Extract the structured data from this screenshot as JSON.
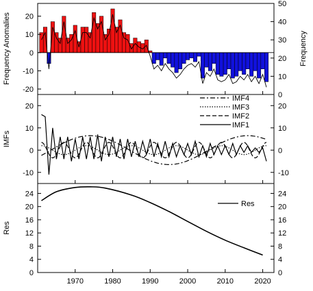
{
  "figure": {
    "x_ticks": [
      1970,
      1980,
      1990,
      2000,
      2010,
      2020
    ],
    "x_range": [
      1960,
      2023
    ]
  },
  "chart_data": [
    {
      "type": "bar",
      "ylabel_left": "Frequency Anomalies",
      "ylabel_right": "Frequency",
      "ylim_left": [
        -23,
        27
      ],
      "ylim_right": [
        0,
        50
      ],
      "left_ticks": [
        20,
        10,
        0,
        -10,
        -20
      ],
      "right_ticks": [
        50,
        40,
        30,
        20,
        10,
        0
      ],
      "colors": {
        "positive": "#ee1111",
        "negative": "#1111dd"
      },
      "years": [
        1961,
        1962,
        1963,
        1964,
        1965,
        1966,
        1967,
        1968,
        1969,
        1970,
        1971,
        1972,
        1973,
        1974,
        1975,
        1976,
        1977,
        1978,
        1979,
        1980,
        1981,
        1982,
        1983,
        1984,
        1985,
        1986,
        1987,
        1988,
        1989,
        1990,
        1991,
        1992,
        1993,
        1994,
        1995,
        1996,
        1997,
        1998,
        1999,
        2000,
        2001,
        2002,
        2003,
        2004,
        2005,
        2006,
        2007,
        2008,
        2009,
        2010,
        2011,
        2012,
        2013,
        2014,
        2015,
        2016,
        2017,
        2018,
        2019,
        2020,
        2021
      ],
      "anomaly": [
        11,
        14,
        -6,
        17,
        11,
        8,
        20,
        8,
        10,
        15,
        6,
        14,
        14,
        11,
        22,
        16,
        20,
        10,
        13,
        24,
        14,
        18,
        11,
        10,
        5,
        8,
        6,
        5,
        7,
        1,
        -6,
        -4,
        -7,
        -3,
        -6,
        -8,
        -11,
        -9,
        -6,
        -4,
        -3,
        -5,
        -2,
        -14,
        -8,
        -10,
        -6,
        -12,
        -13,
        -12,
        -9,
        -14,
        -13,
        -10,
        -12,
        -9,
        -13,
        -10,
        -14,
        -9,
        -16
      ],
      "frequency": [
        30,
        34,
        14,
        37,
        31,
        28,
        40,
        28,
        30,
        35,
        26,
        34,
        34,
        31,
        42,
        36,
        40,
        30,
        33,
        44,
        34,
        38,
        31,
        30,
        25,
        28,
        26,
        25,
        27,
        21,
        14,
        16,
        13,
        17,
        14,
        12,
        9,
        11,
        14,
        16,
        17,
        15,
        18,
        6,
        12,
        10,
        14,
        8,
        7,
        8,
        11,
        6,
        7,
        10,
        8,
        11,
        7,
        10,
        6,
        11,
        4
      ]
    },
    {
      "type": "line",
      "ylabel": "IMFs",
      "ylim": [
        -15,
        25
      ],
      "ticks": [
        20,
        10,
        0,
        -10
      ],
      "legend": [
        "IMF4",
        "IMF3",
        "IMF2",
        "IMF1"
      ],
      "legend_position": "top-right",
      "series": [
        {
          "name": "IMF4",
          "style": "dashdot",
          "amplitude": 6.5,
          "period": 42,
          "phase_year": 1974,
          "note": "smooth low-frequency oscillation"
        },
        {
          "name": "IMF3",
          "style": "dotted",
          "amplitude": 2,
          "period": 12
        },
        {
          "name": "IMF2",
          "style": "dashed",
          "amplitude": 3.5,
          "period": 6
        },
        {
          "name": "IMF1",
          "style": "solid",
          "values": [
            16,
            15,
            -11,
            10,
            -4,
            6,
            -4,
            6,
            -5,
            5,
            -4,
            6,
            -4,
            6,
            -4,
            7,
            -5,
            6,
            -3,
            6,
            -3,
            5,
            -4,
            5,
            -3,
            4,
            -3,
            4,
            -2,
            5,
            -3,
            3,
            -3,
            4,
            -3,
            3,
            -3,
            2,
            -2,
            3,
            -2,
            4,
            -3,
            2,
            -3,
            3,
            -2,
            2,
            -2,
            2,
            -2,
            3,
            -2,
            2,
            -1,
            2,
            -1,
            1,
            -1,
            1,
            -5
          ]
        }
      ]
    },
    {
      "type": "line",
      "ylabel": "Res",
      "ylim": [
        0,
        27
      ],
      "ticks": [
        24,
        20,
        16,
        12,
        8,
        4,
        0
      ],
      "legend": [
        "Res"
      ],
      "legend_position": "top-right",
      "series": [
        {
          "name": "Res",
          "x": [
            1961,
            1965,
            1970,
            1974,
            1978,
            1985,
            1990,
            1995,
            2000,
            2005,
            2010,
            2015,
            2020
          ],
          "values": [
            21.8,
            24.5,
            25.8,
            26.0,
            25.6,
            23.5,
            21.2,
            18.5,
            15.5,
            12.5,
            9.8,
            7.5,
            5.3
          ]
        }
      ]
    }
  ]
}
